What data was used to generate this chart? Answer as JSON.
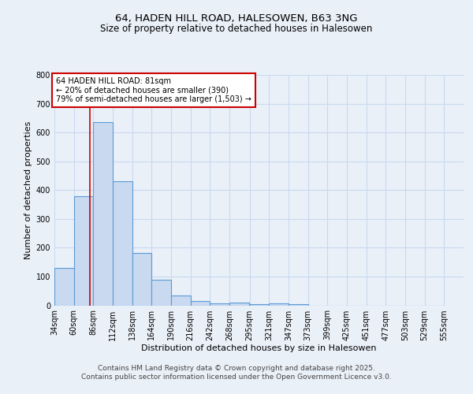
{
  "title_line1": "64, HADEN HILL ROAD, HALESOWEN, B63 3NG",
  "title_line2": "Size of property relative to detached houses in Halesowen",
  "xlabel": "Distribution of detached houses by size in Halesowen",
  "ylabel": "Number of detached properties",
  "bar_left_edges": [
    34,
    60,
    86,
    112,
    138,
    164,
    190,
    216,
    242,
    268,
    295,
    321,
    347,
    373,
    399,
    425,
    451,
    477,
    503,
    529
  ],
  "bar_heights": [
    130,
    380,
    635,
    430,
    183,
    90,
    35,
    15,
    8,
    10,
    5,
    8,
    3,
    0,
    0,
    0,
    0,
    0,
    0,
    0
  ],
  "bin_width": 26,
  "bar_color": "#c8d9f0",
  "bar_edge_color": "#5b9bd5",
  "bar_linewidth": 0.8,
  "grid_color": "#c8d9f0",
  "background_color": "#eaf0f8",
  "plot_bg_color": "#eaf0f8",
  "red_line_x": 81,
  "red_line_color": "#cc0000",
  "annotation_text_line1": "64 HADEN HILL ROAD: 81sqm",
  "annotation_text_line2": "← 20% of detached houses are smaller (390)",
  "annotation_text_line3": "79% of semi-detached houses are larger (1,503) →",
  "annotation_fontsize": 7,
  "annotation_box_color": "white",
  "annotation_border_color": "#cc0000",
  "ylim": [
    0,
    800
  ],
  "yticks": [
    0,
    100,
    200,
    300,
    400,
    500,
    600,
    700,
    800
  ],
  "x_tick_labels": [
    "34sqm",
    "60sqm",
    "86sqm",
    "112sqm",
    "138sqm",
    "164sqm",
    "190sqm",
    "216sqm",
    "242sqm",
    "268sqm",
    "295sqm",
    "321sqm",
    "347sqm",
    "373sqm",
    "399sqm",
    "425sqm",
    "451sqm",
    "477sqm",
    "503sqm",
    "529sqm",
    "555sqm"
  ],
  "x_tick_positions": [
    34,
    60,
    86,
    112,
    138,
    164,
    190,
    216,
    242,
    268,
    295,
    321,
    347,
    373,
    399,
    425,
    451,
    477,
    503,
    529,
    555
  ],
  "footer_line1": "Contains HM Land Registry data © Crown copyright and database right 2025.",
  "footer_line2": "Contains public sector information licensed under the Open Government Licence v3.0.",
  "title_fontsize": 9.5,
  "subtitle_fontsize": 8.5,
  "axis_label_fontsize": 8,
  "tick_fontsize": 7,
  "footer_fontsize": 6.5
}
